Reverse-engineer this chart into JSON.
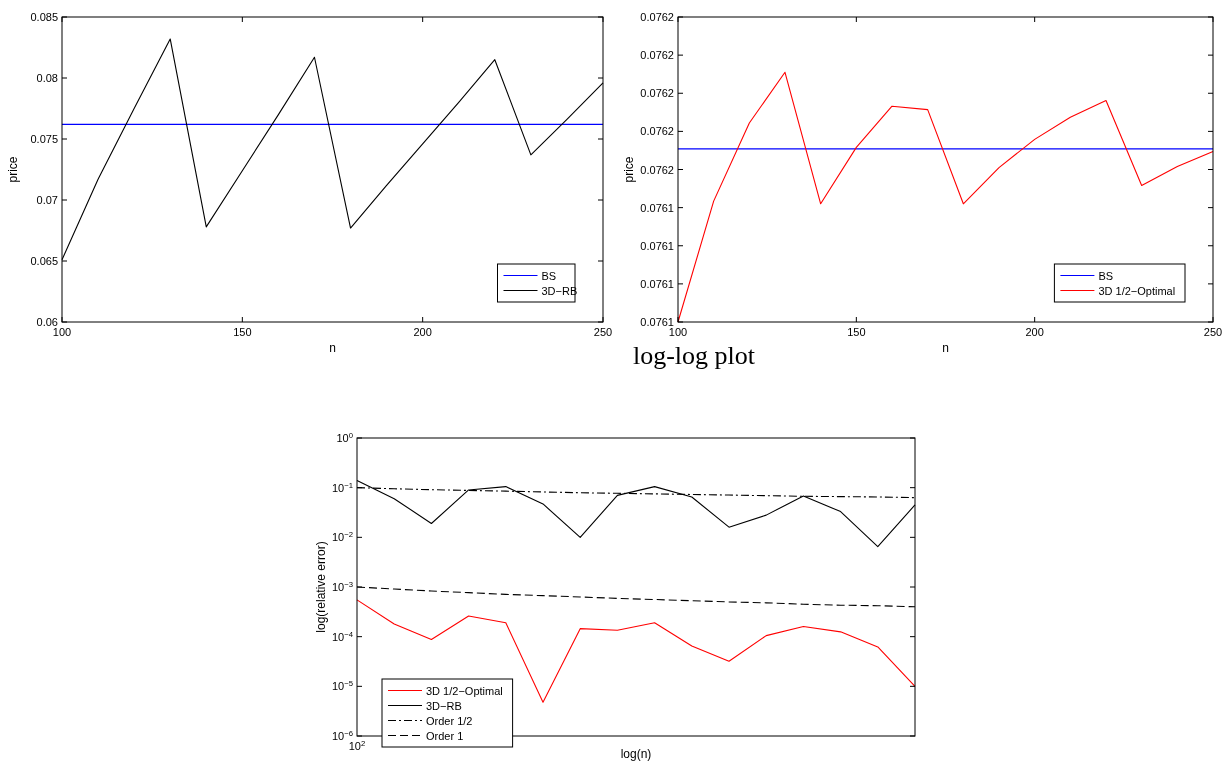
{
  "chart_data": [
    {
      "type": "line",
      "xlabel": "n",
      "ylabel": "price",
      "x": [
        100,
        110,
        120,
        130,
        140,
        150,
        160,
        170,
        180,
        190,
        200,
        210,
        220,
        230,
        240,
        250
      ],
      "series": [
        {
          "name": "BS",
          "color": "#0000ff",
          "values": [
            0.0762,
            0.0762,
            0.0762,
            0.0762,
            0.0762,
            0.0762,
            0.0762,
            0.0762,
            0.0762,
            0.0762,
            0.0762,
            0.0762,
            0.0762,
            0.0762,
            0.0762,
            0.0762
          ]
        },
        {
          "name": "3D−RB",
          "color": "#000000",
          "values": [
            0.0651,
            0.0717,
            0.0775,
            0.0832,
            0.0678,
            0.0724,
            0.077,
            0.0817,
            0.0677,
            0.0712,
            0.0746,
            0.078,
            0.0815,
            0.0737,
            0.0766,
            0.0796
          ]
        }
      ],
      "xlim": [
        100,
        250
      ],
      "xticks": [
        100,
        150,
        200,
        250
      ],
      "ylim": [
        0.06,
        0.085
      ],
      "yticks": [
        0.06,
        0.065,
        0.07,
        0.075,
        0.08,
        0.085
      ],
      "legend": "bottom right"
    },
    {
      "type": "line",
      "xlabel": "n",
      "ylabel": "price",
      "x": [
        100,
        110,
        120,
        130,
        140,
        150,
        160,
        170,
        180,
        190,
        200,
        210,
        220,
        230,
        240,
        250
      ],
      "series": [
        {
          "name": "BS",
          "color": "#0000ff",
          "values": [
            0.0761554,
            0.0761554,
            0.0761554,
            0.0761554,
            0.0761554,
            0.0761554,
            0.0761554,
            0.0761554,
            0.0761554,
            0.0761554,
            0.0761554,
            0.0761554,
            0.0761554,
            0.0761554,
            0.0761554,
            0.0761554
          ]
        },
        {
          "name": "3D 1/2−Optimal",
          "color": "#ff0000",
          "values": [
            0.07611,
            0.0761417,
            0.0761622,
            0.0761755,
            0.076141,
            0.0761558,
            0.0761666,
            0.0761657,
            0.076141,
            0.0761505,
            0.0761579,
            0.0761637,
            0.0761681,
            0.0761458,
            0.0761508,
            0.0761547
          ]
        }
      ],
      "xlim": [
        100,
        250
      ],
      "xticks": [
        100,
        150,
        200,
        250
      ],
      "ylim": [
        0.07611,
        0.07619
      ],
      "yticks": [
        {
          "value": 0.07611,
          "label": "0.0761"
        },
        {
          "value": 0.07612,
          "label": "0.0761"
        },
        {
          "value": 0.07613,
          "label": "0.0761"
        },
        {
          "value": 0.07614,
          "label": "0.0761"
        },
        {
          "value": 0.07615,
          "label": "0.0762"
        },
        {
          "value": 0.07616,
          "label": "0.0762"
        },
        {
          "value": 0.07617,
          "label": "0.0762"
        },
        {
          "value": 0.07618,
          "label": "0.0762"
        },
        {
          "value": 0.07619,
          "label": "0.0762"
        }
      ],
      "legend": "bottom right"
    },
    {
      "type": "line",
      "title": "log-log plot",
      "xlabel": "log(n)",
      "ylabel": "log(relative error)",
      "log": "y",
      "annotations": [
        "10$^{2}$"
      ],
      "categories": [
        null,
        null,
        null,
        null,
        null,
        null,
        null,
        null,
        null,
        null,
        null,
        null,
        null,
        null,
        null,
        null
      ],
      "series": [
        {
          "name": "3D 1/2−Optimal",
          "color": "#ff0000",
          "line_style": "solid",
          "values": [
            0.00055,
            0.00018,
            8.8e-05,
            0.00026,
            0.00019,
            4.8e-06,
            0.000145,
            0.000135,
            0.00019,
            6.5e-05,
            3.2e-05,
            0.000105,
            0.00016,
            0.000125,
            6.2e-05,
            1e-05
          ]
        },
        {
          "name": "3D−RB",
          "color": "#000000",
          "line_style": "solid",
          "values": [
            0.14,
            0.06,
            0.019,
            0.09,
            0.105,
            0.047,
            0.01,
            0.07,
            0.105,
            0.065,
            0.016,
            0.028,
            0.068,
            0.033,
            0.0065,
            0.045
          ]
        },
        {
          "name": "Order 1/2",
          "color": "#000000",
          "line_style": "dashdot",
          "values": [
            0.1,
            0.095,
            0.091,
            0.088,
            0.085,
            0.082,
            0.079,
            0.077,
            0.075,
            0.073,
            0.071,
            0.069,
            0.067,
            0.066,
            0.065,
            0.063
          ]
        },
        {
          "name": "Order 1",
          "color": "#000000",
          "line_style": "dashed",
          "values": [
            0.001,
            0.00091,
            0.00083,
            0.00077,
            0.00071,
            0.00067,
            0.00063,
            0.00059,
            0.00056,
            0.00053,
            0.0005,
            0.00048,
            0.00045,
            0.00043,
            0.00042,
            0.0004
          ]
        }
      ],
      "ylim": [
        1e-06,
        1
      ],
      "yticks": [
        {
          "value": 1e-06,
          "label": "10$^{−6}$"
        },
        {
          "value": 1e-05,
          "label": "10$^{−5}$"
        },
        {
          "value": 0.0001,
          "label": "10$^{−4}$"
        },
        {
          "value": 0.001,
          "label": "10$^{−3}$"
        },
        {
          "value": 0.01,
          "label": "10$^{−2}$"
        },
        {
          "value": 0.1,
          "label": "10$^{−1}$"
        },
        {
          "value": 1,
          "label": "10$^{0}$"
        }
      ],
      "legend": "bottom left"
    }
  ]
}
